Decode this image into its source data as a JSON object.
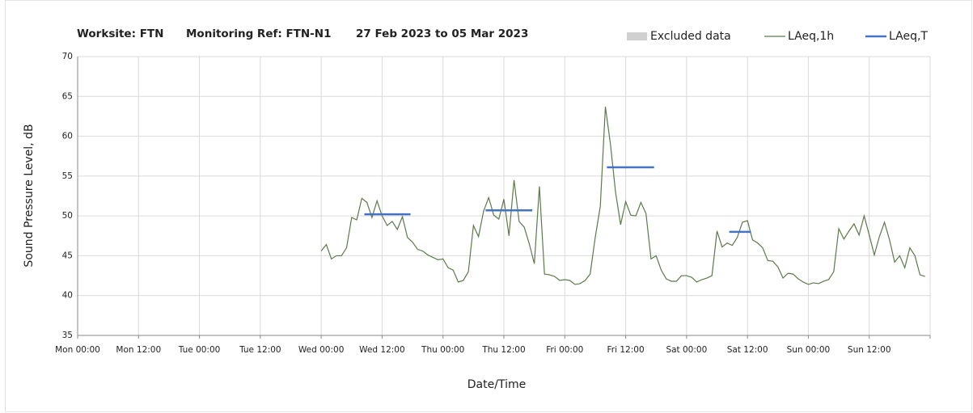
{
  "chart_data": {
    "type": "line",
    "title_parts": [
      "Worksite: FTN",
      "Monitoring Ref: FTN-N1",
      "27 Feb 2023 to 05 Mar 2023"
    ],
    "x_label": "Date/Time",
    "y_label": "Sound Pressure Level, dB",
    "xlim": [
      0,
      168
    ],
    "xticks": [
      {
        "value": 0,
        "label": "Mon 00:00"
      },
      {
        "value": 12,
        "label": "Mon 12:00"
      },
      {
        "value": 24,
        "label": "Tue 00:00"
      },
      {
        "value": 36,
        "label": "Tue 12:00"
      },
      {
        "value": 48,
        "label": "Wed 00:00"
      },
      {
        "value": 60,
        "label": "Wed 12:00"
      },
      {
        "value": 72,
        "label": "Thu 00:00"
      },
      {
        "value": 84,
        "label": "Thu 12:00"
      },
      {
        "value": 96,
        "label": "Fri 00:00"
      },
      {
        "value": 108,
        "label": "Fri 12:00"
      },
      {
        "value": 120,
        "label": "Sat 00:00"
      },
      {
        "value": 132,
        "label": "Sat 12:00"
      },
      {
        "value": 144,
        "label": "Sun 00:00"
      },
      {
        "value": 156,
        "label": "Sun 12:00"
      },
      {
        "value": 168,
        "label": ""
      }
    ],
    "ylim": [
      35,
      70
    ],
    "yticks": [
      35,
      40,
      45,
      50,
      55,
      60,
      65,
      70
    ],
    "grid": true,
    "legend": "top-right",
    "series": [
      {
        "name": "Excluded data",
        "color": "#d0d0d0",
        "kind": "area",
        "values": []
      },
      {
        "name": "LAeq,1h",
        "color": "#5b7a4a",
        "kind": "line",
        "x": [
          48,
          49,
          50,
          51,
          52,
          53,
          54,
          55,
          56,
          57,
          58,
          59,
          60,
          61,
          62,
          63,
          64,
          65,
          66,
          67,
          68,
          69,
          70,
          71,
          72,
          73,
          74,
          75,
          76,
          77,
          78,
          79,
          80,
          81,
          82,
          83,
          84,
          85,
          86,
          87,
          88,
          89,
          90,
          91,
          92,
          93,
          94,
          95,
          96,
          97,
          98,
          99,
          100,
          101,
          102,
          103,
          104,
          105,
          106,
          107,
          108,
          109,
          110,
          111,
          112,
          113,
          114,
          115,
          116,
          117,
          118,
          119,
          120,
          121,
          122,
          123,
          124,
          125,
          126,
          127,
          128,
          129,
          130,
          131,
          132,
          133,
          134,
          135,
          136,
          137,
          138,
          139,
          140,
          141,
          142,
          143,
          144,
          145,
          146,
          147,
          148,
          149,
          150,
          151,
          152,
          153,
          154,
          155,
          156,
          157,
          158,
          159,
          160,
          161,
          162,
          163,
          164,
          165,
          166,
          167
        ],
        "values": [
          45.6,
          46.4,
          44.6,
          45.0,
          45.0,
          46.0,
          49.8,
          49.5,
          52.2,
          51.7,
          49.8,
          51.9,
          50.0,
          48.8,
          49.3,
          48.3,
          49.9,
          47.3,
          46.7,
          45.8,
          45.6,
          45.1,
          44.8,
          44.5,
          44.6,
          43.5,
          43.2,
          41.7,
          41.9,
          43.0,
          48.8,
          47.4,
          50.6,
          52.3,
          50.1,
          49.6,
          52.1,
          47.5,
          54.5,
          49.3,
          48.6,
          46.5,
          44.0,
          53.7,
          42.7,
          42.6,
          42.4,
          41.9,
          42.0,
          41.9,
          41.4,
          41.5,
          41.9,
          42.7,
          47.3,
          51.2,
          63.7,
          59.0,
          53.0,
          48.9,
          51.8,
          50.1,
          50.0,
          51.7,
          50.3,
          44.6,
          45.0,
          43.2,
          42.1,
          41.8,
          41.8,
          42.5,
          42.5,
          42.3,
          41.7,
          42.0,
          42.2,
          42.5,
          48.1,
          46.1,
          46.6,
          46.3,
          47.3,
          49.2,
          49.4,
          47.0,
          46.6,
          46.0,
          44.4,
          44.3,
          43.6,
          42.2,
          42.8,
          42.7,
          42.1,
          41.7,
          41.4,
          41.6,
          41.5,
          41.8,
          42.0,
          43.0,
          48.4,
          47.1,
          48.1,
          49.0,
          47.6,
          50.0,
          47.6,
          45.1,
          47.4,
          49.2,
          47.0,
          44.2,
          45.0,
          43.5,
          46.0,
          45.0,
          42.6,
          42.4
        ]
      },
      {
        "name": "LAeq,T",
        "color": "#4472c4",
        "kind": "segments",
        "x_start": [
          56.5,
          80.4,
          104.3,
          128.4
        ],
        "x_end": [
          65.6,
          89.6,
          113.6,
          132.7
        ],
        "values": [
          50.2,
          50.7,
          56.1,
          48.0
        ]
      }
    ]
  }
}
